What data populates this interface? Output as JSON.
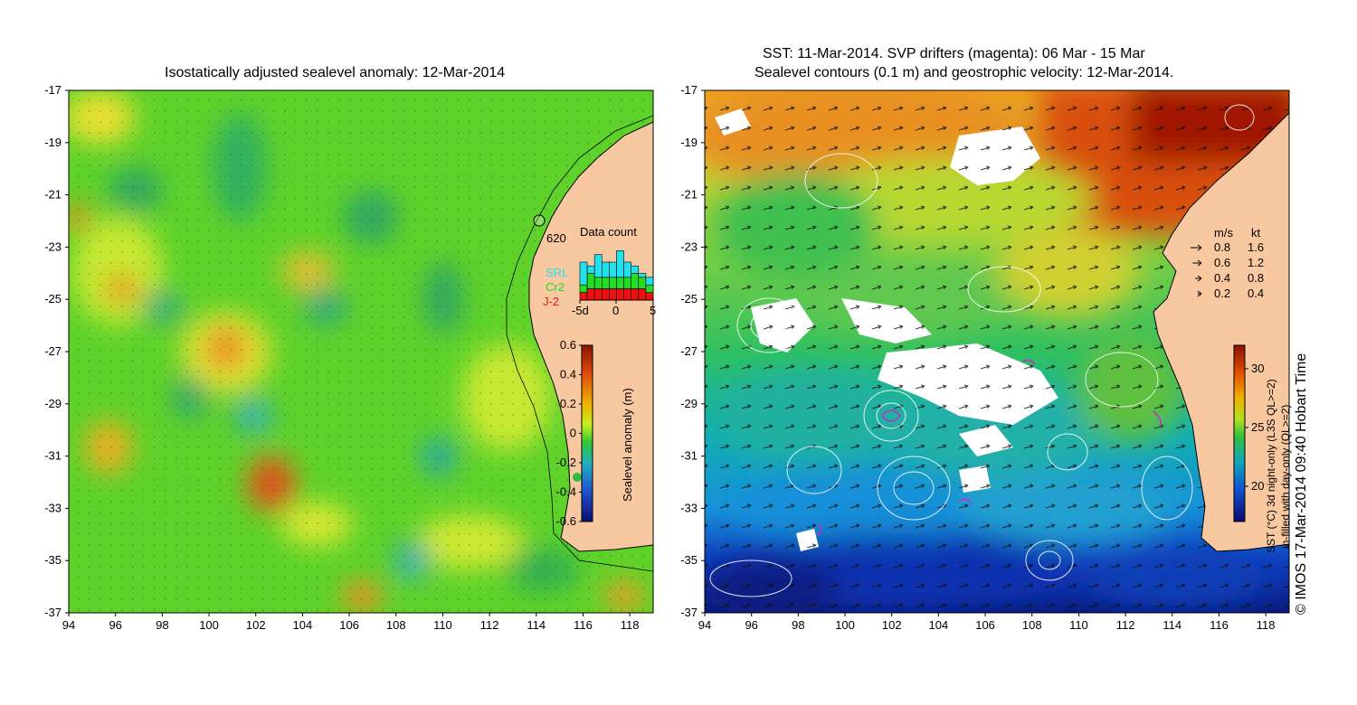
{
  "left_panel": {
    "title": "Isostatically adjusted sealevel anomaly: 12-Mar-2014",
    "station_label": "620",
    "inset": {
      "title": "Data count",
      "legend": [
        {
          "label": "SRL",
          "color": "#22e0f0"
        },
        {
          "label": "Cr2",
          "color": "#22dd22"
        },
        {
          "label": "J-2",
          "color": "#ee1111"
        }
      ],
      "x_ticks": [
        "-5d",
        "0",
        "5"
      ]
    },
    "colorbar": {
      "label": "Sealevel anomaly (m)",
      "ticks": [
        "0.6",
        "0.4",
        "0.2",
        "0",
        "-0.2",
        "-0.4",
        "-0.6"
      ]
    }
  },
  "right_panel": {
    "title_line1": "SST: 11-Mar-2014. SVP drifters (magenta): 06 Mar - 15 Mar",
    "title_line2": "Sealevel contours (0.1 m) and geostrophic velocity: 12-Mar-2014.",
    "velocity_legend": {
      "header_ms": "m/s",
      "header_kt": "kt",
      "rows": [
        {
          "ms": "0.8",
          "kt": "1.6"
        },
        {
          "ms": "0.6",
          "kt": "1.2"
        },
        {
          "ms": "0.4",
          "kt": "0.8"
        },
        {
          "ms": "0.2",
          "kt": "0.4"
        }
      ]
    },
    "colorbar": {
      "label_line1": "SST (°C) 3d night-only (L3S QL>=2)",
      "label_line2": "in-filled with day-only (QL>=2)",
      "ticks": [
        "30",
        "25",
        "20"
      ]
    }
  },
  "axes": {
    "y_ticks": [
      "-17",
      "-19",
      "-21",
      "-23",
      "-25",
      "-27",
      "-29",
      "-31",
      "-33",
      "-35",
      "-37"
    ],
    "x_ticks": [
      "94",
      "96",
      "98",
      "100",
      "102",
      "104",
      "106",
      "108",
      "110",
      "112",
      "114",
      "116",
      "118"
    ]
  },
  "credit": "© IMOS 17-Mar-2014 09:40 Hobart Time",
  "colors": {
    "land": "#f8c8a0",
    "sla_background": "#5ed22a",
    "sst_warm": "#d84400",
    "sst_cool": "#0a2aa8"
  },
  "chart_data": [
    {
      "type": "heatmap",
      "title": "Isostatically adjusted sealevel anomaly: 12-Mar-2014",
      "xlim": [
        94,
        119
      ],
      "ylim": [
        -37,
        -17
      ],
      "colorbar_range": [
        -0.6,
        0.6
      ],
      "colorbar_label": "Sealevel anomaly (m)"
    },
    {
      "type": "bar",
      "title": "Data count",
      "categories": [
        "-5d",
        "-4d",
        "-3d",
        "-2d",
        "-1d",
        "0",
        "1d",
        "2d",
        "3d",
        "4d"
      ],
      "series": [
        {
          "name": "J-2",
          "values": [
            2,
            3,
            3,
            3,
            3,
            3,
            3,
            3,
            3,
            2
          ]
        },
        {
          "name": "Cr2",
          "values": [
            2,
            4,
            3,
            3,
            3,
            3,
            3,
            4,
            3,
            2
          ]
        },
        {
          "name": "SRL",
          "values": [
            6,
            2,
            6,
            4,
            4,
            7,
            4,
            2,
            1,
            2
          ]
        }
      ]
    },
    {
      "type": "heatmap",
      "title": "SST: 11-Mar-2014. SVP drifters (magenta): 06 Mar - 15 Mar",
      "xlim": [
        94,
        119
      ],
      "ylim": [
        -37,
        -17
      ],
      "colorbar_range": [
        17,
        32
      ]
    }
  ]
}
